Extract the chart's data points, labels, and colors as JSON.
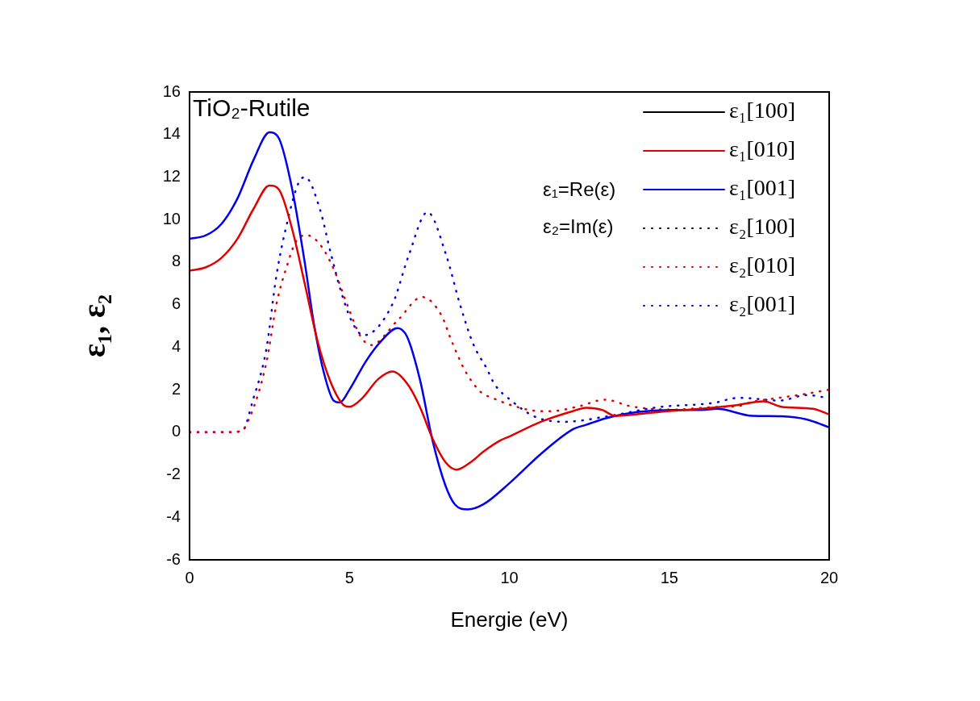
{
  "chart_data": {
    "type": "line",
    "title": "TiO₂-Rutile",
    "xlabel": "Energie (eV)",
    "ylabel": "ε₁, ε₂",
    "annotations": [
      "ε₁=Re(ε)",
      "ε₂=Im(ε)"
    ],
    "xlim": [
      0,
      20
    ],
    "ylim": [
      -6,
      16
    ],
    "xticks": [
      0,
      5,
      10,
      15,
      20
    ],
    "yticks": [
      -6,
      -4,
      -2,
      0,
      2,
      4,
      6,
      8,
      10,
      12,
      14,
      16
    ],
    "legend": "top right",
    "series": [
      {
        "name": "ε₁[100]",
        "color": "#000000",
        "line_style": "solid"
      },
      {
        "name": "ε₁[010]",
        "color": "#e00000",
        "line_style": "solid",
        "x": [
          0,
          0.5,
          1,
          1.5,
          2,
          2.5,
          2.8,
          3.2,
          3.6,
          4,
          4.4,
          4.8,
          5,
          5.4,
          5.9,
          6.35,
          6.8,
          7.2,
          7.6,
          8,
          8.35,
          8.8,
          9.2,
          9.7,
          10,
          11,
          12,
          12.4,
          12.9,
          13.3,
          14,
          15,
          16,
          17,
          17.95,
          18.5,
          19.5,
          20
        ],
        "values": [
          7.6,
          7.75,
          8.2,
          9.1,
          10.5,
          11.6,
          11.4,
          9.6,
          7,
          4.3,
          2.4,
          1.3,
          1.2,
          1.6,
          2.5,
          2.86,
          2.3,
          1.2,
          -0.3,
          -1.4,
          -1.76,
          -1.4,
          -0.9,
          -0.4,
          -0.2,
          0.5,
          1,
          1.15,
          1.05,
          0.77,
          0.85,
          1,
          1.1,
          1.25,
          1.45,
          1.2,
          1.1,
          0.84
        ]
      },
      {
        "name": "ε₁[001]",
        "color": "#0000ee",
        "line_style": "solid",
        "x": [
          0,
          0.5,
          1,
          1.5,
          2,
          2.5,
          2.8,
          3.2,
          3.6,
          3.9,
          4.2,
          4.5,
          4.7,
          5,
          5.5,
          6,
          6.5,
          6.8,
          7.2,
          7.6,
          8,
          8.3,
          8.7,
          9.2,
          10,
          11,
          12,
          12.4,
          13,
          14,
          15,
          16,
          16.5,
          17.6,
          18.5,
          19.3,
          20
        ],
        "values": [
          9.1,
          9.25,
          9.8,
          11,
          12.8,
          14.1,
          13.8,
          11.5,
          8,
          5,
          2.8,
          1.5,
          1.4,
          2,
          3.3,
          4.3,
          4.9,
          4.5,
          2.5,
          -0.4,
          -2.5,
          -3.4,
          -3.63,
          -3.38,
          -2.4,
          -1,
          0.15,
          0.35,
          0.65,
          0.95,
          1.05,
          1.05,
          1.1,
          0.77,
          0.75,
          0.6,
          0.23
        ]
      },
      {
        "name": "ε₂[100]",
        "color": "#000000",
        "line_style": "dotted"
      },
      {
        "name": "ε₂[010]",
        "color": "#e00000",
        "line_style": "dotted",
        "x": [
          0,
          1,
          1.6,
          1.89,
          2.4,
          2.72,
          3.07,
          3.32,
          3.66,
          4.08,
          4.5,
          4.92,
          5.34,
          5.67,
          6.52,
          7.27,
          7.86,
          8.2,
          8.62,
          9.12,
          9.46,
          10.13,
          10.97,
          11.3,
          12.15,
          12.99,
          13.83,
          15.1,
          16.35,
          17.19,
          17.6,
          18.45,
          19.3,
          20
        ],
        "values": [
          0,
          0,
          0.05,
          0.73,
          3.26,
          6.04,
          7.94,
          8.95,
          9.27,
          8.83,
          7.7,
          6.04,
          4.53,
          4.1,
          5.28,
          6.36,
          5.54,
          4.27,
          2.88,
          1.87,
          1.62,
          1.24,
          0.99,
          0.99,
          1.21,
          1.53,
          1.21,
          1.06,
          1.18,
          1.24,
          1.43,
          1.62,
          1.81,
          2
        ]
      },
      {
        "name": "ε₂[001]",
        "color": "#0000ee",
        "line_style": "dotted",
        "x": [
          0,
          1,
          1.64,
          1.98,
          2.4,
          2.72,
          3.07,
          3.4,
          3.61,
          4.08,
          4.41,
          4.75,
          5.09,
          5.44,
          6.35,
          6.85,
          7.44,
          8.03,
          8.45,
          8.87,
          9.29,
          9.54,
          10.05,
          10.8,
          11.73,
          13,
          14.67,
          16.35,
          17.19,
          18.45,
          19.3,
          20
        ],
        "values": [
          0,
          0,
          0.04,
          1.5,
          3.9,
          7.4,
          9.97,
          11.7,
          12,
          10.47,
          8.45,
          6.55,
          5.16,
          4.56,
          6.04,
          8.3,
          10.35,
          8.3,
          6.04,
          4.15,
          3,
          2.25,
          1.5,
          0.73,
          0.49,
          0.73,
          1.18,
          1.37,
          1.62,
          1.49,
          1.75,
          1.6
        ]
      }
    ]
  }
}
